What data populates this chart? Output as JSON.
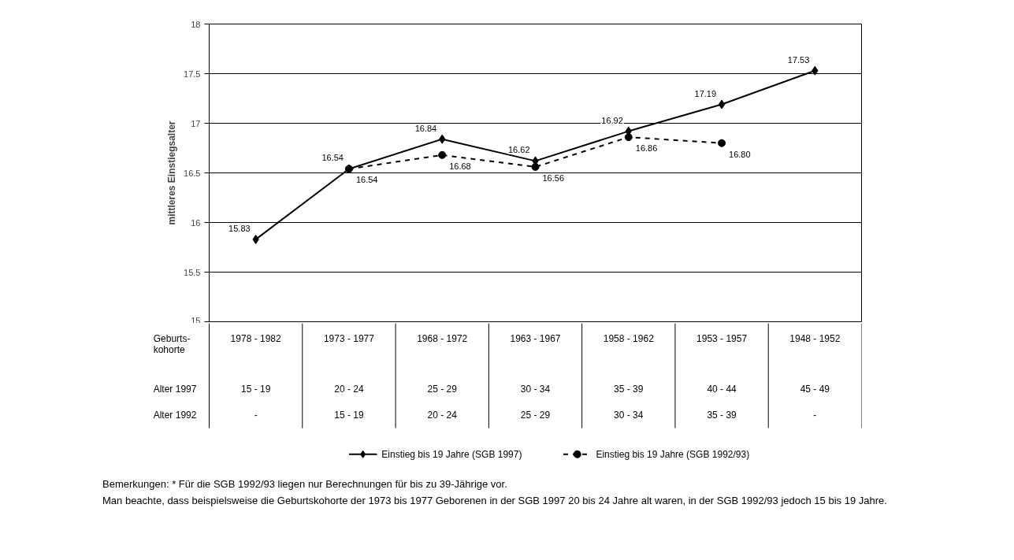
{
  "chart_data": {
    "type": "line",
    "ylabel": "mittleres Einstiegsalter",
    "categories": [
      "1978 - 1982\n15 - 19\n-",
      "1973 - 1977\n20 - 24\n15 - 19",
      "1968 - 1972\n25 - 29\n20 - 24",
      "1963 - 1967\n30 - 34\n25 - 29",
      "1958 - 1962\n35 - 39\n30 - 34",
      "1953 - 1957\n40 - 44\n35 - 39",
      "1948 - 1952\n45 - 49\n-"
    ],
    "series": [
      {
        "name": "Einstieg bis 19 Jahre (SGB 1997)",
        "color": "#000000",
        "marker": "diamond",
        "line_style": "solid",
        "values": [
          15.83,
          16.54,
          16.84,
          16.62,
          16.92,
          17.19,
          17.53
        ],
        "value_labels": [
          "15.83",
          "16.54",
          "16.84",
          "16.62",
          "16.92",
          "17.19",
          "17.53"
        ]
      },
      {
        "name": "Einstieg bis 19 Jahre (SGB 1992/93)",
        "color": "#000000",
        "marker": "circle",
        "line_style": "dashed",
        "values": [
          null,
          16.54,
          16.68,
          16.56,
          16.86,
          16.8,
          null
        ],
        "value_labels": [
          null,
          "16.54",
          "16.68",
          "16.56",
          "16.86",
          "16.80",
          null
        ]
      }
    ],
    "ylim": [
      15,
      18
    ],
    "yticks": [
      15,
      15.5,
      16,
      16.5,
      17,
      17.5,
      18
    ],
    "grid": "y",
    "legend": "bottom",
    "annotations": [
      "Geburts-\nkohorte",
      "Alter 1997",
      "Alter 1992",
      "Bemerkungen: * Für die SGB 1992/93 liegen nur Berechnungen für bis zu 39-Jährige vor.",
      "Man beachte, dass beispielsweise die Geburtskohorte der 1973 bis 1977 Geborenen in der SGB 1997 20 bis 24 Jahre alt waren, in der SGB 1992/93 jedoch 15 bis 19 Jahre."
    ]
  }
}
